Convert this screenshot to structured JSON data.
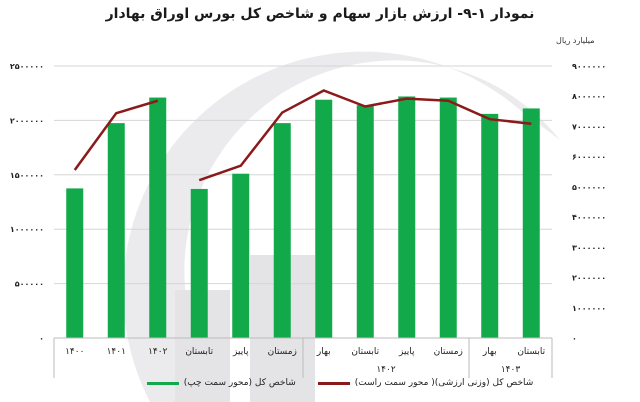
{
  "title": "نمودار ۱-۹- ارزش بازار سهام و شاخص کل بورس اوراق بهادار",
  "right_axis_unit": "میلیارد ریال",
  "colors": {
    "bar": "#12a94b",
    "line": "#8b1a1a",
    "grid": "#d6d6d6",
    "watermark": "#ebebed"
  },
  "legend": {
    "line_label": "شاخص کل (وزنی ارزشی)( محور سمت راست)",
    "bar_label": "شاخص کل (محور سمت چپ)"
  },
  "chart_data": {
    "type": "bar+line",
    "title": "نمودار ۱-۹- ارزش بازار سهام و شاخص کل بورس اوراق بهادار",
    "categories": [
      "۱۴۰۰",
      "۱۴۰۱",
      "۱۴۰۲",
      "تابستان",
      "پاییز",
      "زمستان",
      "بهار",
      "تابستان",
      "پاییز",
      "زمستان",
      "بهار",
      "تابستان"
    ],
    "group_labels": [
      {
        "label": "",
        "from": 3,
        "to": 5
      },
      {
        "label": "۱۴۰۲",
        "from": 6,
        "to": 9
      },
      {
        "label": "۱۴۰۳",
        "from": 10,
        "to": 11
      }
    ],
    "series": [
      {
        "name": "شاخص کل (محور سمت چپ)",
        "type": "bar",
        "axis": "left",
        "values": [
          1375000,
          1975000,
          2210000,
          1370000,
          1510000,
          1975000,
          2190000,
          2140000,
          2220000,
          2210000,
          2060000,
          2110000
        ]
      },
      {
        "name": "شاخص کل (وزنی ارزشی)( محور سمت راست)",
        "type": "line",
        "axis": "right",
        "values": [
          5560000,
          7440000,
          7850000,
          5220000,
          5700000,
          7460000,
          8190000,
          7660000,
          7920000,
          7850000,
          7240000,
          7090000
        ],
        "breaks_after": [
          2
        ]
      }
    ],
    "left_axis": {
      "ylim": [
        0,
        2500000
      ],
      "ticks": [
        "۰",
        "۵۰۰۰۰۰",
        "۱۰۰۰۰۰۰",
        "۱۵۰۰۰۰۰",
        "۲۰۰۰۰۰۰",
        "۲۵۰۰۰۰۰"
      ]
    },
    "right_axis": {
      "label": "میلیارد ریال",
      "ylim": [
        0,
        9000000
      ],
      "ticks": [
        "۰",
        "۱۰۰۰۰۰۰",
        "۲۰۰۰۰۰۰",
        "۳۰۰۰۰۰۰",
        "۴۰۰۰۰۰۰",
        "۵۰۰۰۰۰۰",
        "۶۰۰۰۰۰۰",
        "۷۰۰۰۰۰۰",
        "۸۰۰۰۰۰۰",
        "۹۰۰۰۰۰۰"
      ]
    },
    "grid": true,
    "legend_position": "bottom"
  }
}
